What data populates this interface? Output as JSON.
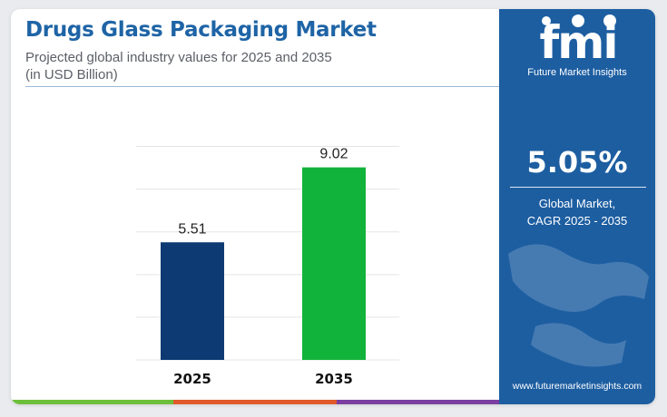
{
  "header": {
    "title": "Drugs Glass Packaging Market",
    "subtitle_line1": "Projected global industry values for 2025 and 2035",
    "subtitle_line2": "(in USD Billion)"
  },
  "colors": {
    "title": "#1e64a6",
    "panel": "#1d5ea1",
    "bar_2025": "#0d3a73",
    "bar_2035": "#12b33a",
    "strip": [
      "#6cbf3a",
      "#e05a2b",
      "#7a3fa0"
    ]
  },
  "chart_data": {
    "type": "bar",
    "title": "Drugs Glass Packaging Market",
    "categories": [
      "2025",
      "2035"
    ],
    "values": [
      5.51,
      9.02
    ],
    "value_labels": [
      "5.51",
      "9.02"
    ],
    "colors": [
      "#0d3a73",
      "#12b33a"
    ],
    "ylim": [
      0,
      11
    ],
    "grid": true,
    "xlabel": "",
    "ylabel": ""
  },
  "brand": {
    "logo_text": "fmi",
    "tagline": "Future Market Insights",
    "website": "www.futuremarketinsights.com"
  },
  "stat": {
    "cagr_value": "5.05%",
    "label_line1": "Global Market,",
    "label_line2": "CAGR 2025 - 2035"
  }
}
